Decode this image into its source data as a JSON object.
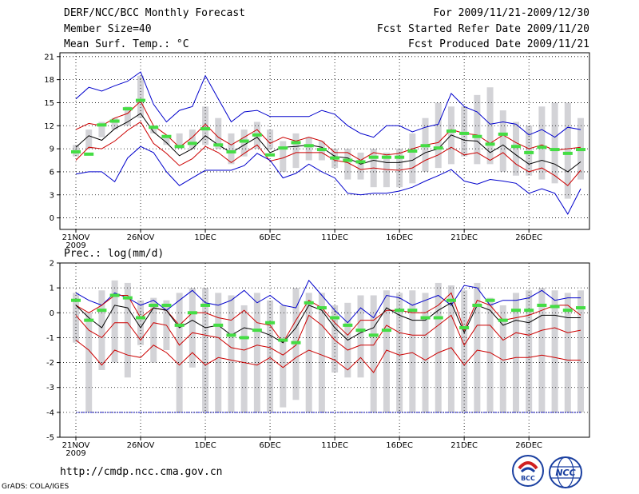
{
  "header": {
    "title": "DERF/NCC/BCC Monthly Forecast",
    "member_size": "Member Size=40",
    "for_period": "For 2009/11/21-2009/12/30",
    "fcst_started": "Fcst Started Refer Date 2009/11/20",
    "fcst_produced": "Fcst Produced Date 2009/11/21"
  },
  "footer": {
    "url": "http://cmdp.ncc.cma.gov.cn",
    "grads": "GrADS: COLA/IGES",
    "logo_bcc_text": "BCC",
    "logo_ncc_text": "NCC"
  },
  "colors": {
    "max_line": "#0000cc",
    "pct_line": "#cc0000",
    "mean_line": "#000000",
    "bar": "#d3d3d7",
    "obs_marker": "#44dd44",
    "grid": "#000000"
  },
  "chart_data": [
    {
      "type": "line",
      "title": "Mean Surf. Temp.: °C",
      "xlabel": "",
      "ylabel": "",
      "ylim": [
        -1.5,
        21.5
      ],
      "yticks": [
        0,
        3,
        6,
        9,
        12,
        15,
        18,
        21
      ],
      "days": 40,
      "x_tick_labels": [
        {
          "day": 1,
          "label": "21NOV",
          "sub": "2009"
        },
        {
          "day": 6,
          "label": "26NOV"
        },
        {
          "day": 11,
          "label": "1DEC"
        },
        {
          "day": 16,
          "label": "6DEC"
        },
        {
          "day": 21,
          "label": "11DEC"
        },
        {
          "day": 26,
          "label": "16DEC"
        },
        {
          "day": 31,
          "label": "21DEC"
        },
        {
          "day": 36,
          "label": "26DEC"
        }
      ],
      "bars": {
        "low": [
          8,
          9,
          10.5,
          11.5,
          12,
          13,
          11,
          9.5,
          9,
          9,
          9.5,
          9,
          7,
          8,
          9,
          9,
          6,
          6.5,
          7.5,
          7.5,
          6.5,
          5,
          5,
          4,
          4,
          4,
          4.5,
          6,
          6.5,
          7,
          8,
          7,
          7,
          6,
          5.5,
          5.5,
          5,
          4.5,
          2.5,
          5
        ],
        "high": [
          9.5,
          11.5,
          12.5,
          13,
          14.5,
          18.5,
          12,
          10.5,
          11,
          11.5,
          14.5,
          13,
          11,
          11.5,
          12.5,
          11.5,
          10,
          11,
          10.5,
          10,
          9,
          9,
          8.5,
          9,
          8.5,
          9,
          11,
          13,
          15,
          14.5,
          14.5,
          16,
          17,
          14,
          12.5,
          12,
          14.5,
          15,
          15,
          13
        ]
      },
      "series": [
        {
          "name": "max",
          "color": "#0000cc",
          "values": [
            15.5,
            17,
            16.5,
            17.2,
            17.8,
            19,
            14.8,
            12.5,
            14,
            14.5,
            18.5,
            15.5,
            12.5,
            13.8,
            14,
            13.2,
            13.2,
            13.2,
            13.2,
            14,
            13.5,
            12,
            11,
            10.5,
            12,
            12,
            11.2,
            11.8,
            12.2,
            16.2,
            14.5,
            13.8,
            12.2,
            12.5,
            12.2,
            10.8,
            11.5,
            10.5,
            11.8,
            11.5
          ]
        },
        {
          "name": "p90",
          "color": "#cc0000",
          "values": [
            11.5,
            12.3,
            12,
            13,
            13.6,
            15.2,
            12,
            10.8,
            9.2,
            10.5,
            12.2,
            10.5,
            9.5,
            10.5,
            11.5,
            9.7,
            10.5,
            10,
            10.5,
            10,
            8.5,
            8.5,
            7.5,
            8.5,
            8.2,
            8.4,
            9,
            9.5,
            9.8,
            11.5,
            11,
            10.8,
            9.7,
            10.8,
            9.8,
            9,
            9.5,
            8.8,
            9,
            9.2
          ]
        },
        {
          "name": "mean",
          "color": "#000000",
          "values": [
            9.2,
            10.7,
            10.1,
            11.6,
            12.5,
            13.6,
            11.2,
            9.8,
            8.1,
            9,
            10.7,
            9.5,
            8.5,
            9.5,
            10.5,
            8.5,
            9.2,
            9.3,
            9.5,
            9.2,
            8,
            7.8,
            7,
            7.5,
            7.2,
            7.2,
            7.5,
            8.5,
            9,
            10.8,
            10.1,
            10,
            8.5,
            9.5,
            8.2,
            7,
            7.5,
            7,
            6,
            7.3
          ]
        },
        {
          "name": "p10",
          "color": "#cc0000",
          "values": [
            7.5,
            9.2,
            9,
            10,
            11.4,
            12.5,
            9.7,
            8.4,
            6.8,
            7.7,
            9.3,
            8.5,
            7.2,
            8.4,
            9.5,
            7.4,
            7.8,
            8.5,
            8.5,
            8.5,
            7.5,
            7.2,
            6.3,
            6.5,
            6.3,
            6.2,
            6.5,
            7.5,
            8.2,
            9.2,
            8.2,
            8.5,
            7.5,
            8.5,
            7,
            6,
            6.5,
            5.5,
            4.2,
            6.2
          ]
        },
        {
          "name": "min",
          "color": "#0000cc",
          "values": [
            5.7,
            6,
            6,
            4.7,
            7.8,
            9.3,
            8.5,
            6,
            4.2,
            5.2,
            6.2,
            6.2,
            6.2,
            6.8,
            8.4,
            7.5,
            5.2,
            5.8,
            7,
            6,
            5.2,
            3.2,
            3,
            3.2,
            3.2,
            3.5,
            4,
            4.8,
            5.5,
            6.3,
            4.8,
            4.4,
            5,
            4.8,
            4.5,
            3.2,
            3.8,
            3.2,
            0.5,
            3.8
          ]
        }
      ],
      "obs": [
        8.6,
        8.3,
        12.1,
        12.6,
        14.2,
        15.3,
        11.8,
        10.6,
        9.3,
        9.7,
        11.6,
        9.5,
        8.6,
        10,
        10.8,
        8.2,
        9.1,
        9.8,
        9.4,
        8.9,
        7.8,
        7.5,
        7.3,
        7.9,
        7.9,
        7.9,
        8.7,
        9.4,
        9.1,
        11.3,
        11.0,
        10.6,
        9.6,
        10.9,
        9.3,
        8.5,
        9.2,
        8.9,
        8.4,
        8.9
      ]
    },
    {
      "type": "line",
      "title": "Prec.: log(mm/d)",
      "xlabel": "",
      "ylabel": "",
      "ylim": [
        -5,
        2
      ],
      "yticks": [
        -5,
        -4,
        -3,
        -2,
        -1,
        0,
        1,
        2
      ],
      "days": 40,
      "x_tick_labels": [
        {
          "day": 1,
          "label": "21NOV",
          "sub": "2009"
        },
        {
          "day": 6,
          "label": "26NOV"
        },
        {
          "day": 11,
          "label": "1DEC"
        },
        {
          "day": 16,
          "label": "6DEC"
        },
        {
          "day": 21,
          "label": "11DEC"
        },
        {
          "day": 26,
          "label": "16DEC"
        },
        {
          "day": 31,
          "label": "21DEC"
        },
        {
          "day": 36,
          "label": "26DEC"
        }
      ],
      "floor_line": -4,
      "bars": {
        "low": [
          -1.2,
          -4,
          -2.3,
          -2,
          -2.6,
          -1.3,
          -2,
          -1.5,
          -4,
          -2.2,
          -4,
          -4,
          -4,
          -4,
          -4,
          -4,
          -3.8,
          -3.5,
          -4,
          -4,
          -2.4,
          -2.6,
          -2.6,
          -4,
          -4,
          -4,
          -4,
          -4,
          -4,
          -4,
          -4,
          -4,
          -4,
          -4,
          -4,
          -4,
          -4,
          -4,
          -4,
          -4
        ],
        "high": [
          0.8,
          0,
          0.9,
          1.3,
          1.2,
          0.5,
          0.6,
          0.5,
          0.8,
          1,
          1,
          0.8,
          0.7,
          0.3,
          0.8,
          0.5,
          0.3,
          1,
          0.8,
          0.8,
          0.3,
          0.4,
          0.7,
          0.7,
          0.9,
          0.8,
          0.9,
          0.8,
          1.2,
          1.1,
          0.9,
          1.2,
          0.6,
          0.3,
          0.8,
          0.9,
          1,
          0.9,
          0.8,
          0.9
        ]
      },
      "series": [
        {
          "name": "max",
          "color": "#0000cc",
          "values": [
            0.8,
            0.5,
            0.3,
            0.8,
            0.6,
            0.3,
            0.5,
            0.1,
            0.5,
            0.9,
            0.4,
            0.3,
            0.5,
            0.9,
            0.4,
            0.7,
            0.3,
            0.2,
            1.3,
            0.7,
            0.1,
            -0.4,
            0.2,
            -0.2,
            0.7,
            0.6,
            0.3,
            0.5,
            0.7,
            0.3,
            1.1,
            1.0,
            0.3,
            0.5,
            0.5,
            0.6,
            0.9,
            0.5,
            0.6,
            0.6
          ]
        },
        {
          "name": "p90",
          "color": "#cc0000",
          "values": [
            0.3,
            0,
            0.3,
            0.7,
            0.7,
            -0.2,
            0.2,
            0.1,
            -0.5,
            0,
            0,
            -0.2,
            -0.3,
            0.1,
            -0.4,
            -0.5,
            -1.2,
            -0.3,
            0.5,
            0.2,
            -0.4,
            -0.9,
            -0.3,
            -0.3,
            0.1,
            0.1,
            0,
            0,
            0.3,
            0.8,
            -0.7,
            0.5,
            0.3,
            -0.3,
            -0.2,
            -0.1,
            0.1,
            0.3,
            0.3,
            -0.1
          ]
        },
        {
          "name": "mean",
          "color": "#000000",
          "values": [
            0.3,
            -0.2,
            -0.6,
            0.3,
            0.2,
            -0.6,
            0.2,
            0.1,
            -0.6,
            -0.3,
            -0.6,
            -0.5,
            -0.9,
            -0.6,
            -0.7,
            -0.9,
            -1.2,
            -0.6,
            0.3,
            0.1,
            -0.6,
            -1.1,
            -0.8,
            -0.6,
            0.2,
            -0.1,
            -0.3,
            -0.3,
            0.1,
            0.4,
            -0.8,
            0.3,
            0.1,
            -0.5,
            -0.3,
            -0.4,
            -0.1,
            -0.1,
            -0.2,
            -0.2
          ]
        },
        {
          "name": "p10",
          "color": "#cc0000",
          "values": [
            -0.1,
            -0.7,
            -1,
            -0.4,
            -0.4,
            -1.1,
            -0.4,
            -0.5,
            -1.3,
            -0.8,
            -0.9,
            -1,
            -1.4,
            -1.5,
            -1.3,
            -1.4,
            -1.7,
            -1.3,
            -0.1,
            -0.5,
            -1.1,
            -1.5,
            -1.3,
            -1.3,
            -0.5,
            -0.8,
            -0.9,
            -0.9,
            -0.5,
            -0.1,
            -1.3,
            -0.5,
            -0.5,
            -1.1,
            -0.8,
            -0.9,
            -0.7,
            -0.6,
            -0.8,
            -0.7
          ]
        },
        {
          "name": "min",
          "color": "#cc0000",
          "values": [
            -1.1,
            -1.5,
            -2.1,
            -1.5,
            -1.7,
            -1.8,
            -1.3,
            -1.6,
            -2.1,
            -1.6,
            -2.1,
            -1.8,
            -1.9,
            -2,
            -2.1,
            -1.8,
            -2.2,
            -1.8,
            -1.5,
            -1.7,
            -1.9,
            -2.3,
            -1.8,
            -2.4,
            -1.5,
            -1.7,
            -1.6,
            -1.9,
            -1.6,
            -1.4,
            -2.1,
            -1.5,
            -1.6,
            -1.9,
            -1.8,
            -1.8,
            -1.7,
            -1.8,
            -1.9,
            -1.9
          ]
        }
      ],
      "obs": [
        0.5,
        -0.3,
        0.1,
        0.7,
        0.6,
        -0.2,
        0.3,
        0.3,
        -0.5,
        0,
        0.3,
        -0.5,
        -0.9,
        -1,
        -0.7,
        -0.4,
        -1.1,
        -1.2,
        0.4,
        0.2,
        -0.2,
        -0.5,
        -0.7,
        -0.9,
        -0.7,
        0.1,
        0.1,
        -0.2,
        -0.2,
        0.5,
        -0.6,
        0.3,
        0.5,
        -0.3,
        0.1,
        0.1,
        0.3,
        0.25,
        0.1,
        0.2
      ]
    }
  ]
}
